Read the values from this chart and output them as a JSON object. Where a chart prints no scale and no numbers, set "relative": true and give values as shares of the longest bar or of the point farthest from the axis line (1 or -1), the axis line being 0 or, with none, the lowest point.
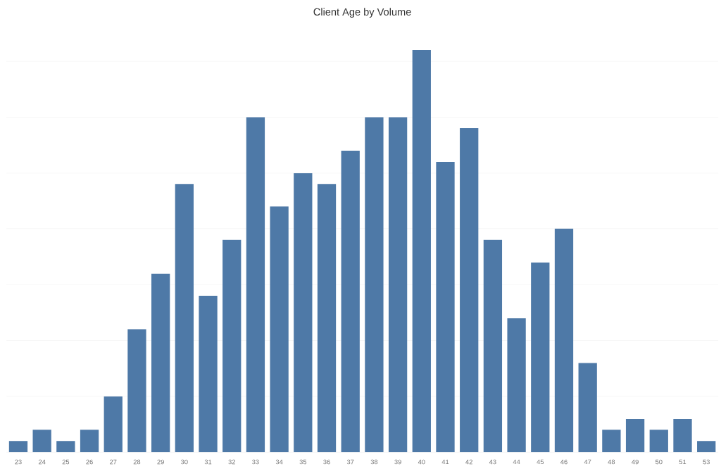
{
  "chart_data": {
    "type": "bar",
    "title": "Client Age by Volume",
    "categories": [
      "23",
      "24",
      "25",
      "26",
      "27",
      "28",
      "29",
      "30",
      "31",
      "32",
      "33",
      "34",
      "35",
      "36",
      "37",
      "38",
      "39",
      "40",
      "41",
      "42",
      "43",
      "44",
      "45",
      "46",
      "47",
      "48",
      "49",
      "50",
      "51",
      "53"
    ],
    "values": [
      0.028,
      0.056,
      0.028,
      0.056,
      0.139,
      0.306,
      0.444,
      0.667,
      0.389,
      0.528,
      0.833,
      0.611,
      0.694,
      0.667,
      0.75,
      0.833,
      0.833,
      1,
      0.722,
      0.806,
      0.528,
      0.333,
      0.472,
      0.556,
      0.222,
      0.056,
      0.083,
      0.056,
      0.083,
      0.028
    ],
    "color": "#4e79a7",
    "relative": true,
    "grid": "y"
  }
}
